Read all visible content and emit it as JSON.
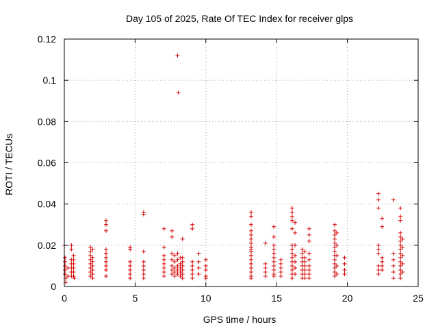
{
  "chart_data": {
    "type": "scatter",
    "title": "Day 105 of 2025, Rate Of TEC Index for receiver glps",
    "xlabel": "GPS time / hours",
    "ylabel": "ROTI / TECUs",
    "xlim": [
      0,
      25
    ],
    "ylim": [
      0,
      0.12
    ],
    "x_ticks": [
      0,
      5,
      10,
      15,
      20,
      25
    ],
    "x_tick_labels": [
      "0",
      "5",
      "10",
      "15",
      "20",
      "25"
    ],
    "y_ticks": [
      0,
      0.02,
      0.04,
      0.06,
      0.08,
      0.1,
      0.12
    ],
    "y_tick_labels": [
      "0",
      "0.02",
      "0.04",
      "0.06",
      "0.08",
      "0.1",
      "0.12"
    ],
    "grid": true,
    "marker": "+",
    "color": "#d40000",
    "series": [
      {
        "name": "ROTI",
        "points": [
          [
            0.0,
            0.02
          ],
          [
            0.05,
            0.014
          ],
          [
            0.05,
            0.012
          ],
          [
            0.05,
            0.01
          ],
          [
            0.05,
            0.008
          ],
          [
            0.05,
            0.006
          ],
          [
            0.1,
            0.004
          ],
          [
            0.1,
            0.002
          ],
          [
            0.25,
            0.009
          ],
          [
            0.25,
            0.005
          ],
          [
            0.5,
            0.02
          ],
          [
            0.5,
            0.018
          ],
          [
            0.5,
            0.013
          ],
          [
            0.5,
            0.011
          ],
          [
            0.5,
            0.009
          ],
          [
            0.5,
            0.007
          ],
          [
            0.5,
            0.005
          ],
          [
            0.65,
            0.015
          ],
          [
            0.65,
            0.013
          ],
          [
            0.65,
            0.011
          ],
          [
            0.65,
            0.009
          ],
          [
            0.65,
            0.007
          ],
          [
            0.65,
            0.005
          ],
          [
            0.7,
            0.004
          ],
          [
            1.85,
            0.019
          ],
          [
            1.85,
            0.017
          ],
          [
            1.85,
            0.015
          ],
          [
            1.85,
            0.013
          ],
          [
            1.85,
            0.011
          ],
          [
            1.85,
            0.009
          ],
          [
            1.85,
            0.007
          ],
          [
            1.85,
            0.005
          ],
          [
            2.0,
            0.018
          ],
          [
            2.0,
            0.014
          ],
          [
            2.0,
            0.012
          ],
          [
            2.0,
            0.01
          ],
          [
            2.0,
            0.008
          ],
          [
            2.0,
            0.006
          ],
          [
            2.0,
            0.004
          ],
          [
            2.95,
            0.032
          ],
          [
            2.95,
            0.03
          ],
          [
            2.95,
            0.027
          ],
          [
            2.95,
            0.018
          ],
          [
            2.95,
            0.016
          ],
          [
            2.95,
            0.014
          ],
          [
            2.95,
            0.012
          ],
          [
            2.95,
            0.01
          ],
          [
            2.95,
            0.008
          ],
          [
            2.95,
            0.005
          ],
          [
            4.65,
            0.019
          ],
          [
            4.65,
            0.018
          ],
          [
            4.65,
            0.012
          ],
          [
            4.65,
            0.01
          ],
          [
            4.65,
            0.008
          ],
          [
            4.65,
            0.006
          ],
          [
            4.65,
            0.004
          ],
          [
            5.6,
            0.036
          ],
          [
            5.6,
            0.035
          ],
          [
            5.6,
            0.017
          ],
          [
            5.6,
            0.012
          ],
          [
            5.6,
            0.01
          ],
          [
            5.6,
            0.008
          ],
          [
            5.6,
            0.006
          ],
          [
            5.6,
            0.004
          ],
          [
            7.05,
            0.028
          ],
          [
            7.05,
            0.019
          ],
          [
            7.05,
            0.015
          ],
          [
            7.05,
            0.013
          ],
          [
            7.05,
            0.011
          ],
          [
            7.05,
            0.009
          ],
          [
            7.05,
            0.007
          ],
          [
            7.05,
            0.005
          ],
          [
            7.6,
            0.027
          ],
          [
            7.6,
            0.024
          ],
          [
            7.6,
            0.016
          ],
          [
            7.6,
            0.013
          ],
          [
            7.6,
            0.01
          ],
          [
            7.6,
            0.008
          ],
          [
            7.6,
            0.006
          ],
          [
            7.8,
            0.015
          ],
          [
            7.8,
            0.012
          ],
          [
            7.8,
            0.009
          ],
          [
            7.8,
            0.007
          ],
          [
            7.8,
            0.005
          ],
          [
            8.0,
            0.112
          ],
          [
            8.05,
            0.094
          ],
          [
            8.0,
            0.016
          ],
          [
            8.0,
            0.013
          ],
          [
            8.0,
            0.01
          ],
          [
            8.0,
            0.008
          ],
          [
            8.0,
            0.006
          ],
          [
            8.2,
            0.014
          ],
          [
            8.2,
            0.011
          ],
          [
            8.2,
            0.009
          ],
          [
            8.2,
            0.007
          ],
          [
            8.2,
            0.005
          ],
          [
            8.35,
            0.023
          ],
          [
            8.35,
            0.014
          ],
          [
            8.35,
            0.012
          ],
          [
            8.35,
            0.01
          ],
          [
            8.35,
            0.008
          ],
          [
            8.35,
            0.006
          ],
          [
            8.35,
            0.004
          ],
          [
            9.05,
            0.03
          ],
          [
            9.05,
            0.028
          ],
          [
            9.05,
            0.012
          ],
          [
            9.05,
            0.01
          ],
          [
            9.05,
            0.008
          ],
          [
            9.05,
            0.006
          ],
          [
            9.05,
            0.004
          ],
          [
            9.5,
            0.016
          ],
          [
            9.5,
            0.012
          ],
          [
            9.5,
            0.009
          ],
          [
            9.5,
            0.006
          ],
          [
            10.0,
            0.013
          ],
          [
            10.0,
            0.01
          ],
          [
            10.0,
            0.008
          ],
          [
            10.0,
            0.005
          ],
          [
            10.0,
            0.004
          ],
          [
            13.2,
            0.036
          ],
          [
            13.2,
            0.034
          ],
          [
            13.2,
            0.03
          ],
          [
            13.2,
            0.027
          ],
          [
            13.2,
            0.025
          ],
          [
            13.2,
            0.023
          ],
          [
            13.2,
            0.021
          ],
          [
            13.2,
            0.019
          ],
          [
            13.2,
            0.018
          ],
          [
            13.2,
            0.017
          ],
          [
            13.2,
            0.015
          ],
          [
            13.2,
            0.013
          ],
          [
            13.2,
            0.011
          ],
          [
            13.2,
            0.009
          ],
          [
            13.2,
            0.007
          ],
          [
            13.2,
            0.005
          ],
          [
            13.2,
            0.004
          ],
          [
            14.2,
            0.021
          ],
          [
            14.2,
            0.011
          ],
          [
            14.2,
            0.009
          ],
          [
            14.2,
            0.007
          ],
          [
            14.2,
            0.005
          ],
          [
            14.8,
            0.029
          ],
          [
            14.8,
            0.024
          ],
          [
            14.8,
            0.02
          ],
          [
            14.8,
            0.018
          ],
          [
            14.8,
            0.016
          ],
          [
            14.8,
            0.014
          ],
          [
            14.8,
            0.012
          ],
          [
            14.8,
            0.01
          ],
          [
            14.8,
            0.008
          ],
          [
            14.8,
            0.006
          ],
          [
            14.8,
            0.005
          ],
          [
            15.3,
            0.013
          ],
          [
            15.3,
            0.011
          ],
          [
            15.3,
            0.009
          ],
          [
            15.3,
            0.007
          ],
          [
            15.3,
            0.005
          ],
          [
            16.1,
            0.038
          ],
          [
            16.1,
            0.036
          ],
          [
            16.1,
            0.034
          ],
          [
            16.1,
            0.032
          ],
          [
            16.1,
            0.028
          ],
          [
            16.1,
            0.02
          ],
          [
            16.1,
            0.018
          ],
          [
            16.1,
            0.016
          ],
          [
            16.1,
            0.014
          ],
          [
            16.1,
            0.012
          ],
          [
            16.1,
            0.01
          ],
          [
            16.1,
            0.008
          ],
          [
            16.1,
            0.006
          ],
          [
            16.1,
            0.004
          ],
          [
            16.3,
            0.031
          ],
          [
            16.3,
            0.026
          ],
          [
            16.3,
            0.02
          ],
          [
            16.3,
            0.015
          ],
          [
            16.3,
            0.012
          ],
          [
            16.3,
            0.009
          ],
          [
            16.3,
            0.006
          ],
          [
            16.8,
            0.018
          ],
          [
            16.8,
            0.016
          ],
          [
            16.8,
            0.014
          ],
          [
            16.8,
            0.012
          ],
          [
            16.8,
            0.01
          ],
          [
            16.8,
            0.008
          ],
          [
            16.8,
            0.006
          ],
          [
            16.8,
            0.004
          ],
          [
            17.0,
            0.017
          ],
          [
            17.0,
            0.014
          ],
          [
            17.0,
            0.012
          ],
          [
            17.0,
            0.01
          ],
          [
            17.0,
            0.008
          ],
          [
            17.0,
            0.006
          ],
          [
            17.0,
            0.004
          ],
          [
            17.3,
            0.028
          ],
          [
            17.3,
            0.025
          ],
          [
            17.3,
            0.022
          ],
          [
            17.3,
            0.016
          ],
          [
            17.3,
            0.013
          ],
          [
            17.3,
            0.01
          ],
          [
            17.3,
            0.008
          ],
          [
            17.3,
            0.006
          ],
          [
            17.3,
            0.004
          ],
          [
            19.1,
            0.03
          ],
          [
            19.1,
            0.027
          ],
          [
            19.1,
            0.025
          ],
          [
            19.1,
            0.023
          ],
          [
            19.1,
            0.021
          ],
          [
            19.1,
            0.019
          ],
          [
            19.1,
            0.017
          ],
          [
            19.1,
            0.015
          ],
          [
            19.1,
            0.013
          ],
          [
            19.1,
            0.011
          ],
          [
            19.1,
            0.009
          ],
          [
            19.1,
            0.007
          ],
          [
            19.1,
            0.005
          ],
          [
            19.25,
            0.026
          ],
          [
            19.25,
            0.02
          ],
          [
            19.25,
            0.015
          ],
          [
            19.25,
            0.01
          ],
          [
            19.25,
            0.006
          ],
          [
            19.8,
            0.014
          ],
          [
            19.8,
            0.011
          ],
          [
            19.8,
            0.008
          ],
          [
            19.8,
            0.006
          ],
          [
            22.2,
            0.045
          ],
          [
            22.2,
            0.042
          ],
          [
            22.2,
            0.038
          ],
          [
            22.2,
            0.02
          ],
          [
            22.2,
            0.018
          ],
          [
            22.2,
            0.016
          ],
          [
            22.2,
            0.01
          ],
          [
            22.2,
            0.008
          ],
          [
            22.2,
            0.006
          ],
          [
            22.45,
            0.033
          ],
          [
            22.45,
            0.029
          ],
          [
            22.45,
            0.014
          ],
          [
            22.45,
            0.012
          ],
          [
            22.45,
            0.01
          ],
          [
            22.45,
            0.008
          ],
          [
            23.25,
            0.042
          ],
          [
            23.25,
            0.016
          ],
          [
            23.25,
            0.013
          ],
          [
            23.25,
            0.01
          ],
          [
            23.25,
            0.007
          ],
          [
            23.25,
            0.004
          ],
          [
            23.75,
            0.038
          ],
          [
            23.75,
            0.034
          ],
          [
            23.75,
            0.032
          ],
          [
            23.75,
            0.026
          ],
          [
            23.75,
            0.024
          ],
          [
            23.75,
            0.022
          ],
          [
            23.75,
            0.02
          ],
          [
            23.75,
            0.018
          ],
          [
            23.75,
            0.016
          ],
          [
            23.75,
            0.014
          ],
          [
            23.75,
            0.012
          ],
          [
            23.75,
            0.01
          ],
          [
            23.75,
            0.008
          ],
          [
            23.75,
            0.006
          ],
          [
            23.75,
            0.004
          ],
          [
            23.9,
            0.023
          ],
          [
            23.9,
            0.019
          ],
          [
            23.9,
            0.015
          ],
          [
            23.9,
            0.011
          ],
          [
            23.9,
            0.007
          ]
        ]
      }
    ]
  }
}
